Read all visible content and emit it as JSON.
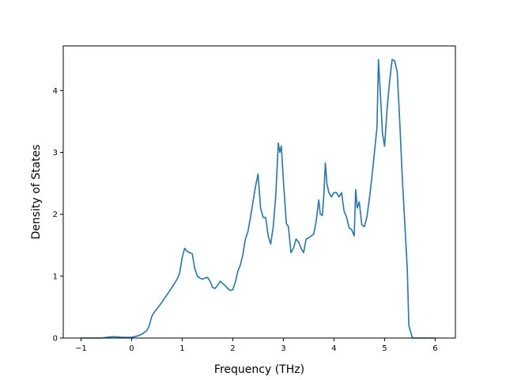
{
  "chart_data": {
    "type": "line",
    "title": "",
    "xlabel": "Frequency (THz)",
    "ylabel": "Density of States",
    "xlim": [
      -1.35,
      6.4
    ],
    "ylim": [
      0,
      4.72
    ],
    "xticks": [
      -1,
      0,
      1,
      2,
      3,
      4,
      5,
      6
    ],
    "yticks": [
      0,
      1,
      2,
      3,
      4
    ],
    "grid": false,
    "color": "#1f77b4",
    "series": [
      {
        "x": [
          -1.0,
          -0.6,
          -0.4,
          -0.3,
          -0.2,
          0.0,
          0.1,
          0.2,
          0.3,
          0.35,
          0.4,
          0.45,
          0.5,
          0.6,
          0.7,
          0.8,
          0.9,
          0.95,
          1.0,
          1.05,
          1.1,
          1.15,
          1.2,
          1.25,
          1.3,
          1.35,
          1.4,
          1.45,
          1.5,
          1.55,
          1.6,
          1.65,
          1.7,
          1.75,
          1.8,
          1.85,
          1.9,
          1.95,
          2.0,
          2.05,
          2.1,
          2.15,
          2.2,
          2.25,
          2.3,
          2.35,
          2.4,
          2.45,
          2.5,
          2.55,
          2.6,
          2.65,
          2.7,
          2.75,
          2.8,
          2.85,
          2.9,
          2.93,
          2.96,
          3.0,
          3.03,
          3.06,
          3.1,
          3.15,
          3.2,
          3.25,
          3.3,
          3.35,
          3.4,
          3.45,
          3.5,
          3.55,
          3.6,
          3.65,
          3.7,
          3.73,
          3.77,
          3.8,
          3.83,
          3.86,
          3.9,
          3.95,
          4.0,
          4.05,
          4.1,
          4.15,
          4.2,
          4.25,
          4.3,
          4.35,
          4.4,
          4.43,
          4.46,
          4.5,
          4.55,
          4.6,
          4.65,
          4.7,
          4.75,
          4.8,
          4.85,
          4.88,
          4.92,
          4.96,
          5.0,
          5.05,
          5.1,
          5.15,
          5.2,
          5.25,
          5.3,
          5.35,
          5.4,
          5.45,
          5.48,
          5.55,
          6.0
        ],
        "y": [
          0.0,
          0.0,
          0.02,
          0.02,
          0.01,
          0.01,
          0.03,
          0.06,
          0.12,
          0.2,
          0.35,
          0.42,
          0.47,
          0.58,
          0.7,
          0.82,
          0.95,
          1.05,
          1.3,
          1.45,
          1.4,
          1.38,
          1.36,
          1.12,
          1.0,
          0.97,
          0.95,
          0.97,
          0.98,
          0.92,
          0.82,
          0.8,
          0.85,
          0.92,
          0.88,
          0.85,
          0.8,
          0.77,
          0.78,
          0.9,
          1.08,
          1.18,
          1.35,
          1.6,
          1.72,
          1.95,
          2.2,
          2.45,
          2.65,
          2.1,
          1.95,
          1.95,
          1.65,
          1.52,
          1.8,
          2.3,
          3.15,
          3.0,
          3.1,
          2.55,
          2.2,
          1.85,
          1.8,
          1.38,
          1.45,
          1.6,
          1.55,
          1.45,
          1.38,
          1.6,
          1.62,
          1.65,
          1.68,
          1.9,
          2.23,
          2.0,
          1.98,
          2.3,
          2.83,
          2.5,
          2.35,
          2.28,
          2.35,
          2.35,
          2.28,
          2.35,
          2.05,
          1.95,
          1.78,
          1.75,
          1.65,
          2.4,
          2.1,
          2.2,
          1.83,
          1.8,
          1.95,
          2.25,
          2.6,
          3.0,
          3.4,
          4.5,
          3.9,
          3.3,
          3.1,
          3.7,
          4.15,
          4.5,
          4.48,
          4.3,
          3.5,
          2.6,
          1.85,
          1.1,
          0.2,
          0.0,
          0.0
        ]
      }
    ]
  }
}
